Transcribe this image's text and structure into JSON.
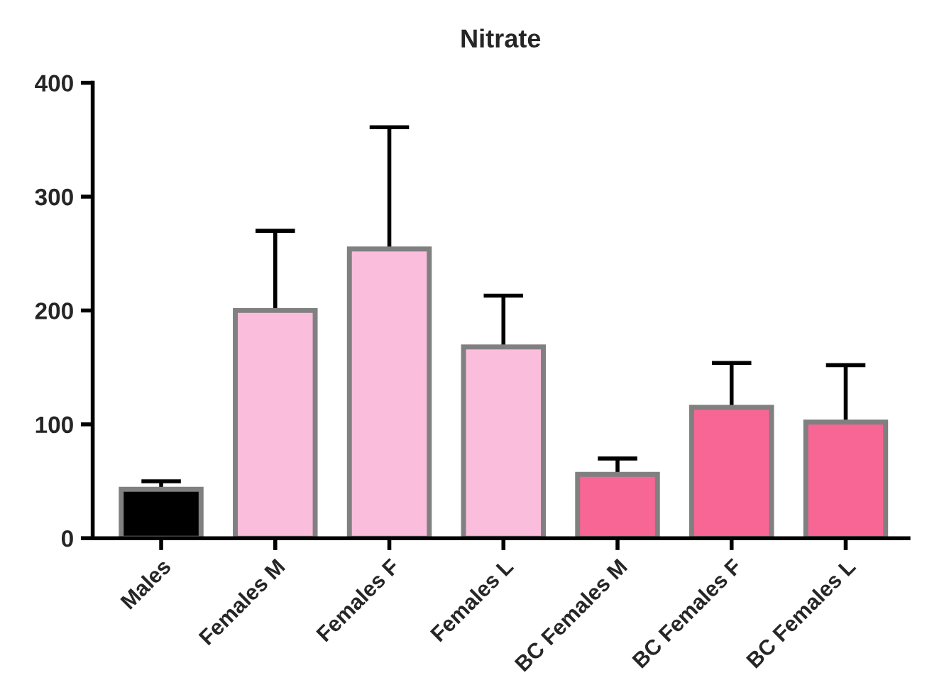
{
  "chart_data": {
    "type": "bar",
    "title": "Nitrate",
    "categories": [
      "Males",
      "Females M",
      "Females F",
      "Females L",
      "BC Females M",
      "BC Females F",
      "BC Females L"
    ],
    "values": [
      43,
      200,
      254,
      168,
      56,
      115,
      102
    ],
    "colors": [
      "#000000",
      "#fbbddc",
      "#fbbddc",
      "#fbbddc",
      "#f76694",
      "#f76694",
      "#f76694"
    ],
    "errors": [
      [
        43,
        50
      ],
      [
        200,
        270
      ],
      [
        254,
        361
      ],
      [
        168,
        213
      ],
      [
        56,
        70
      ],
      [
        115,
        154
      ],
      [
        102,
        152
      ]
    ],
    "ylim": [
      0,
      400
    ],
    "yticks": [
      0,
      100,
      200,
      300,
      400
    ],
    "grid": false,
    "legend": false
  }
}
